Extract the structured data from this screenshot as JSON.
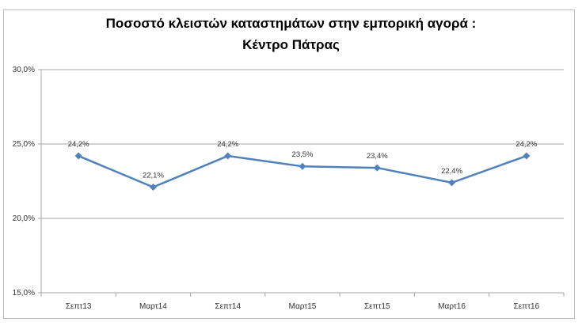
{
  "chart_data": {
    "type": "line",
    "title_line1": "Ποσοστό κλειστών καταστημάτων στην εμπορική αγορά :",
    "title_line2": "Κέντρο Πάτρας",
    "categories": [
      "Σεπτ13",
      "Μαρτ14",
      "Σεπτ14",
      "Μαρτ15",
      "Σεπτ15",
      "Μαρτ16",
      "Σεπτ16"
    ],
    "series": [
      {
        "name": "Ποσοστό",
        "values": [
          24.2,
          22.1,
          24.2,
          23.5,
          23.4,
          22.4,
          24.2
        ],
        "color": "#4f81bd"
      }
    ],
    "data_labels": [
      "24,2%",
      "22,1%",
      "24,2%",
      "23,5%",
      "23,4%",
      "22,4%",
      "24,2%"
    ],
    "y_ticks": [
      15,
      20,
      25,
      30
    ],
    "y_tick_labels": [
      "15,0%",
      "20,0%",
      "25,0%",
      "30,0%"
    ],
    "ylim": [
      15,
      30
    ],
    "grid": true,
    "legend": "none",
    "xlabel": "",
    "ylabel": ""
  }
}
